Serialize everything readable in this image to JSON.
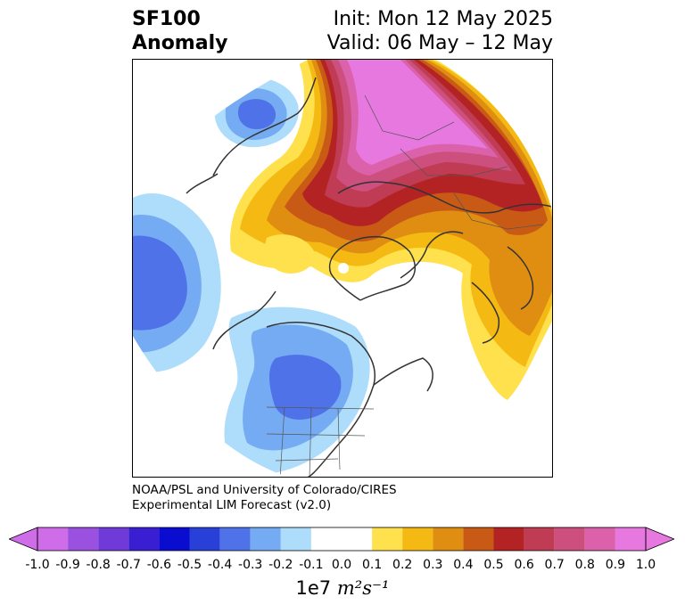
{
  "header": {
    "title_line1": "SF100",
    "title_line2": "Anomaly",
    "init_line": "Init: Mon 12 May 2025",
    "valid_line": "Valid: 06 May – 12 May"
  },
  "credit": {
    "line1": "NOAA/PSL and University of Colorado/CIRES",
    "line2": "Experimental LIM Forecast (v2.0)"
  },
  "colorbar": {
    "ticks": [
      "-1.0",
      "-0.9",
      "-0.8",
      "-0.7",
      "-0.6",
      "-0.5",
      "-0.4",
      "-0.3",
      "-0.2",
      "-0.1",
      "0.0",
      "0.1",
      "0.2",
      "0.3",
      "0.4",
      "0.5",
      "0.6",
      "0.7",
      "0.8",
      "0.9",
      "1.0"
    ],
    "units_prefix": "1e7",
    "units_math": "m²s⁻¹",
    "under_color": "#cf6de8",
    "over_color": "#e778e0",
    "bins": [
      {
        "range": [
          -1.0,
          -0.9
        ],
        "color": "#cf6de8"
      },
      {
        "range": [
          -0.9,
          -0.8
        ],
        "color": "#9b51e0"
      },
      {
        "range": [
          -0.8,
          -0.7
        ],
        "color": "#6f3ad8"
      },
      {
        "range": [
          -0.7,
          -0.6
        ],
        "color": "#3a1fd2"
      },
      {
        "range": [
          -0.6,
          -0.5
        ],
        "color": "#0a0ccf"
      },
      {
        "range": [
          -0.5,
          -0.4
        ],
        "color": "#2940d8"
      },
      {
        "range": [
          -0.4,
          -0.3
        ],
        "color": "#4f72e8"
      },
      {
        "range": [
          -0.3,
          -0.2
        ],
        "color": "#74abf2"
      },
      {
        "range": [
          -0.2,
          -0.1
        ],
        "color": "#aedcfb"
      },
      {
        "range": [
          -0.1,
          0.1
        ],
        "color": "#ffffff"
      },
      {
        "range": [
          0.1,
          0.2
        ],
        "color": "#ffe04d"
      },
      {
        "range": [
          0.2,
          0.3
        ],
        "color": "#f4b912"
      },
      {
        "range": [
          0.3,
          0.4
        ],
        "color": "#e08e11"
      },
      {
        "range": [
          0.4,
          0.5
        ],
        "color": "#c85a16"
      },
      {
        "range": [
          0.5,
          0.6
        ],
        "color": "#b42323"
      },
      {
        "range": [
          0.6,
          0.7
        ],
        "color": "#c03b54"
      },
      {
        "range": [
          0.7,
          0.8
        ],
        "color": "#cc4f7e"
      },
      {
        "range": [
          0.8,
          0.9
        ],
        "color": "#db62aa"
      },
      {
        "range": [
          0.9,
          1.0
        ],
        "color": "#e778e0"
      }
    ]
  },
  "map": {
    "projection": "north-polar",
    "coastline_color": "#333333"
  }
}
